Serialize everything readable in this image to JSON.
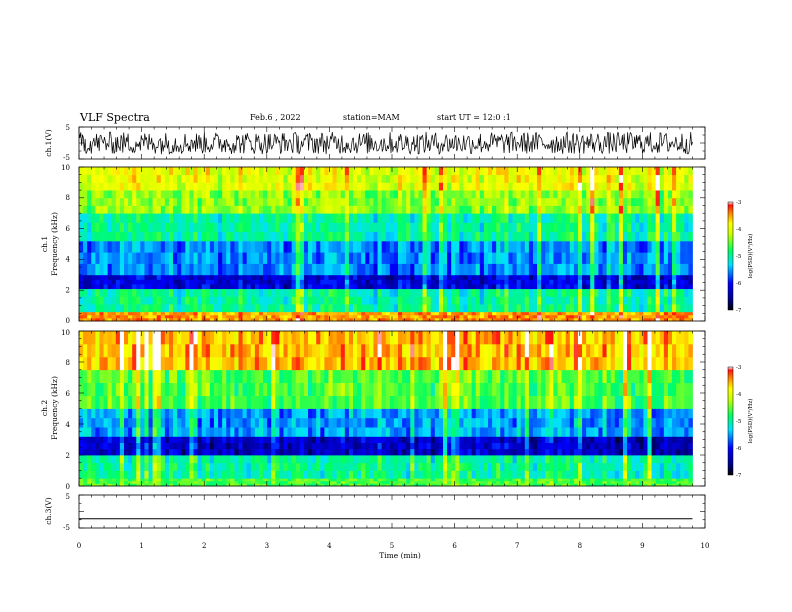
{
  "header": {
    "title": "VLF Spectra",
    "date": "Feb.6 , 2022",
    "station": "station=MAM",
    "start_ut": "start UT =  12:0  :1"
  },
  "chart_data": [
    {
      "type": "line",
      "panel": "ch1-waveform",
      "ylabel": "ch.1(V)",
      "ylim": [
        -5,
        5
      ],
      "yticks": [
        "5",
        "-5"
      ],
      "xlim": [
        0,
        10
      ],
      "series": [
        {
          "values_description_range": [
            -3.5,
            3.5
          ]
        }
      ]
    },
    {
      "type": "heatmap",
      "panel": "ch1-spectrogram",
      "ylabel": "ch.1\nFrequency (kHz)",
      "ylim": [
        0,
        10
      ],
      "yticks": [
        "0",
        "2",
        "4",
        "6",
        "8",
        "10"
      ],
      "xlim": [
        0,
        10
      ],
      "colorbar": {
        "label": "log(PSD)(V²/Hz)",
        "range": [
          -7,
          -3
        ],
        "ticks": [
          "-3",
          "-4",
          "-5",
          "-6",
          "-7"
        ]
      },
      "bands": [
        {
          "freq_khz": [
            0,
            0.6
          ],
          "log_psd": -3.5
        },
        {
          "freq_khz": [
            0.6,
            2.1
          ],
          "log_psd": -5.0
        },
        {
          "freq_khz": [
            2.1,
            3.0
          ],
          "log_psd": -6.2
        },
        {
          "freq_khz": [
            3.0,
            5.2
          ],
          "log_psd": -5.6
        },
        {
          "freq_khz": [
            5.2,
            7.0
          ],
          "log_psd": -5.0
        },
        {
          "freq_khz": [
            7.0,
            8.5
          ],
          "log_psd": -4.4
        },
        {
          "freq_khz": [
            8.5,
            10.0
          ],
          "log_psd": -4.0
        }
      ]
    },
    {
      "type": "heatmap",
      "panel": "ch2-spectrogram",
      "ylabel": "ch.2\nFrequency (kHz)",
      "ylim": [
        0,
        10
      ],
      "yticks": [
        "0",
        "2",
        "4",
        "6",
        "8",
        "10"
      ],
      "xlim": [
        0,
        10
      ],
      "colorbar": {
        "label": "log(PSD)(V²/Hz)",
        "range": [
          -7,
          -3
        ],
        "ticks": [
          "-3",
          "-4",
          "-5",
          "-6",
          "-7"
        ]
      },
      "bands": [
        {
          "freq_khz": [
            0,
            0.5
          ],
          "log_psd": -4.6
        },
        {
          "freq_khz": [
            0.5,
            2.0
          ],
          "log_psd": -5.0
        },
        {
          "freq_khz": [
            2.0,
            3.2
          ],
          "log_psd": -6.3
        },
        {
          "freq_khz": [
            3.2,
            5.0
          ],
          "log_psd": -5.5
        },
        {
          "freq_khz": [
            5.0,
            7.5
          ],
          "log_psd": -4.6
        },
        {
          "freq_khz": [
            7.5,
            10.0
          ],
          "log_psd": -3.6
        }
      ]
    },
    {
      "type": "line",
      "panel": "ch3-waveform",
      "ylabel": "ch.3(V)",
      "ylim": [
        -5,
        5
      ],
      "yticks": [
        "5",
        "-5"
      ],
      "xlim": [
        0,
        10
      ],
      "series": [
        {
          "x": [
            0,
            9.8
          ],
          "y": [
            -2.2,
            -2.2
          ]
        }
      ]
    }
  ],
  "xaxis": {
    "label": "Time (min)",
    "ticks": [
      "0",
      "1",
      "2",
      "3",
      "4",
      "5",
      "6",
      "7",
      "8",
      "9",
      "10"
    ],
    "data_end_min": 9.8
  }
}
